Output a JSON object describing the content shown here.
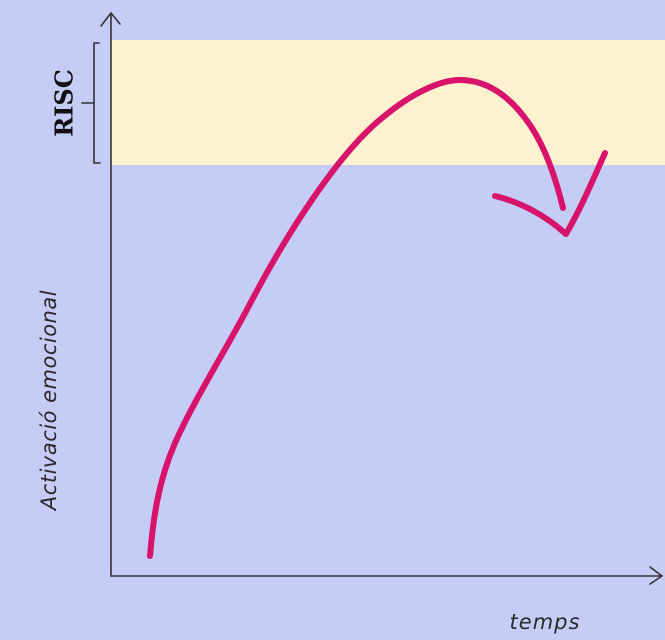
{
  "labels": {
    "risk_zone": "RISC",
    "y_axis": "Activació emocional",
    "x_axis": "temps"
  },
  "colors": {
    "background": "#c5ccf6",
    "risk_band": "#fdf1cf",
    "curve": "#d8136b",
    "axis": "#333333"
  }
}
